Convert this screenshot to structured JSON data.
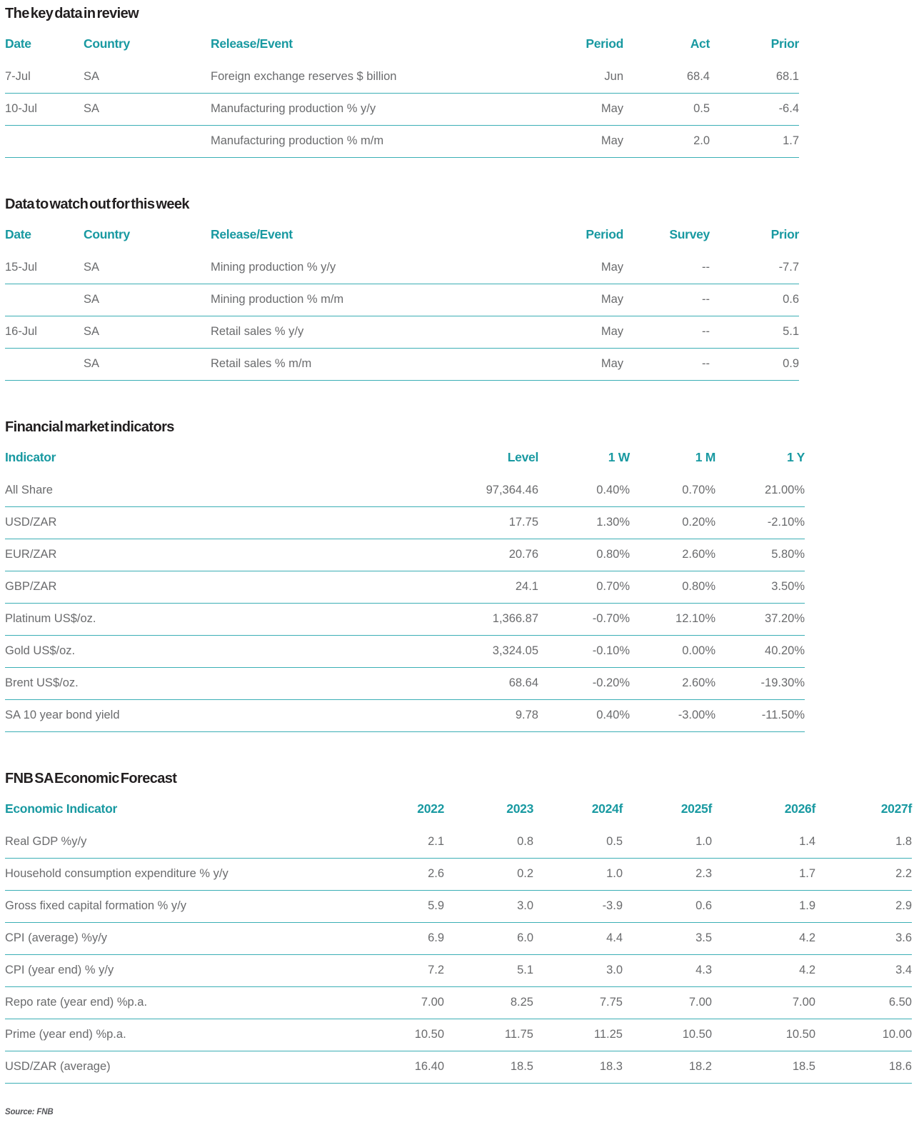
{
  "source_note": "Source: FNB",
  "colors": {
    "accent_teal": "#1899A1",
    "row_line_teal": "#3BAFB5",
    "body_text_gray": "#6A6B6D",
    "title_black": "#221F20"
  },
  "tables": [
    {
      "title": "The key data in review",
      "columns": [
        "Date",
        "Country",
        "Release/Event",
        "Period",
        "Act",
        "Prior"
      ],
      "rows": [
        [
          "7-Jul",
          "SA",
          "Foreign exchange reserves $ billion",
          "Jun",
          "68.4",
          "68.1"
        ],
        [
          "10-Jul",
          "SA",
          "Manufacturing production % y/y",
          "May",
          "0.5",
          "-6.4"
        ],
        [
          "",
          "",
          "Manufacturing production % m/m",
          "May",
          "2.0",
          "1.7"
        ]
      ]
    },
    {
      "title": "Data to watch out for this week",
      "columns": [
        "Date",
        "Country",
        "Release/Event",
        "Period",
        "Survey",
        "Prior"
      ],
      "rows": [
        [
          "15-Jul",
          "SA",
          "Mining production % y/y",
          "May",
          "--",
          "-7.7"
        ],
        [
          "",
          "SA",
          "Mining production % m/m",
          "May",
          "--",
          "0.6"
        ],
        [
          "16-Jul",
          "SA",
          "Retail sales % y/y",
          "May",
          "--",
          "5.1"
        ],
        [
          "",
          "SA",
          "Retail sales % m/m",
          "May",
          "--",
          "0.9"
        ]
      ]
    },
    {
      "title": "Financial market indicators",
      "columns": [
        "Indicator",
        "Level",
        "1 W",
        "1 M",
        "1 Y"
      ],
      "rows": [
        [
          "All Share",
          "97,364.46",
          "0.40%",
          "0.70%",
          "21.00%"
        ],
        [
          "USD/ZAR",
          "17.75",
          "1.30%",
          "0.20%",
          "-2.10%"
        ],
        [
          "EUR/ZAR",
          "20.76",
          "0.80%",
          "2.60%",
          "5.80%"
        ],
        [
          "GBP/ZAR",
          "24.1",
          "0.70%",
          "0.80%",
          "3.50%"
        ],
        [
          "Platinum US$/oz.",
          "1,366.87",
          "-0.70%",
          "12.10%",
          "37.20%"
        ],
        [
          "Gold US$/oz.",
          "3,324.05",
          "-0.10%",
          "0.00%",
          "40.20%"
        ],
        [
          "Brent US$/oz.",
          "68.64",
          "-0.20%",
          "2.60%",
          "-19.30%"
        ],
        [
          "SA 10 year bond yield",
          "9.78",
          "0.40%",
          "-3.00%",
          "-11.50%"
        ]
      ]
    },
    {
      "title": "FNB SA Economic Forecast",
      "columns": [
        "Economic Indicator",
        "2022",
        "2023",
        "2024f",
        "2025f",
        "2026f",
        "2027f"
      ],
      "rows": [
        [
          "Real GDP %y/y",
          "2.1",
          "0.8",
          "0.5",
          "1.0",
          "1.4",
          "1.8"
        ],
        [
          "Household consumption expenditure % y/y",
          "2.6",
          "0.2",
          "1.0",
          "2.3",
          "1.7",
          "2.2"
        ],
        [
          "Gross fixed capital formation % y/y",
          "5.9",
          "3.0",
          "-3.9",
          "0.6",
          "1.9",
          "2.9"
        ],
        [
          "CPI (average) %y/y",
          "6.9",
          "6.0",
          "4.4",
          "3.5",
          "4.2",
          "3.6"
        ],
        [
          "CPI (year end) % y/y",
          "7.2",
          "5.1",
          "3.0",
          "4.3",
          "4.2",
          "3.4"
        ],
        [
          "Repo rate (year end) %p.a.",
          "7.00",
          "8.25",
          "7.75",
          "7.00",
          "7.00",
          "6.50"
        ],
        [
          "Prime (year end) %p.a.",
          "10.50",
          "11.75",
          "11.25",
          "10.50",
          "10.50",
          "10.00"
        ],
        [
          "USD/ZAR (average)",
          "16.40",
          "18.5",
          "18.3",
          "18.2",
          "18.5",
          "18.6"
        ]
      ]
    }
  ]
}
